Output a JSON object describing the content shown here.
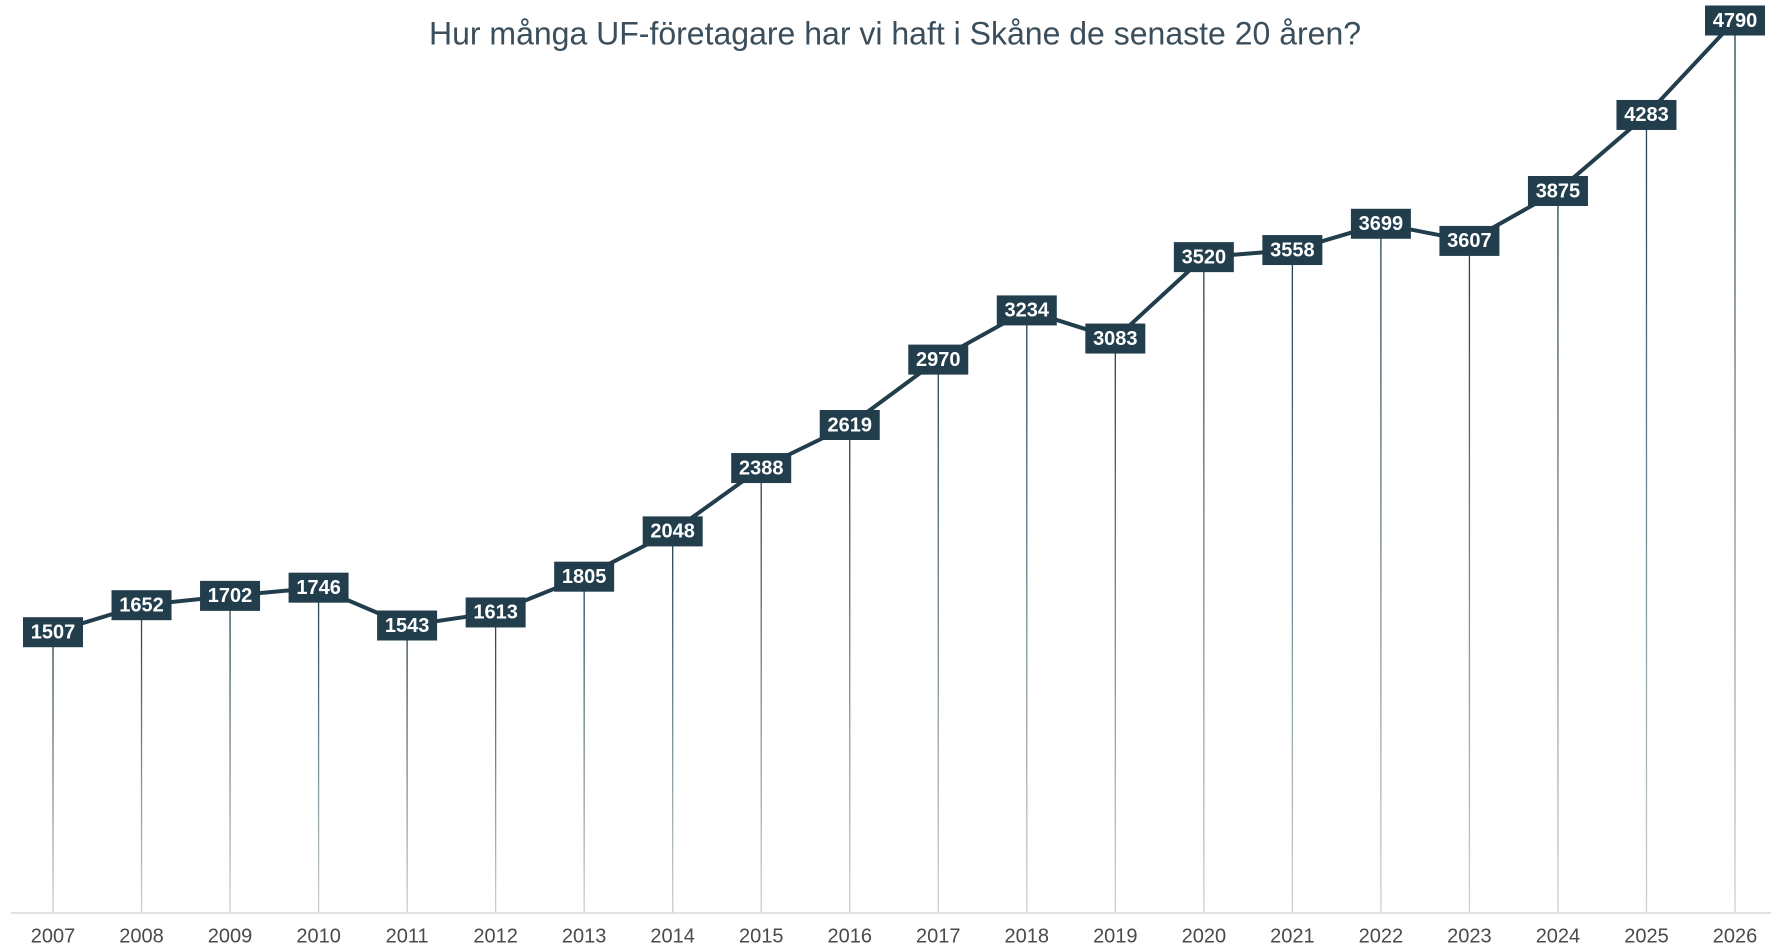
{
  "chart_data": {
    "type": "line",
    "subtitle": "Hur många UF-företagare har vi haft i Skåne de senaste 20 åren?",
    "categories": [
      "2007",
      "2008",
      "2009",
      "2010",
      "2011",
      "2012",
      "2013",
      "2014",
      "2015",
      "2016",
      "2017",
      "2018",
      "2019",
      "2020",
      "2021",
      "2022",
      "2023",
      "2024",
      "2025",
      "2026"
    ],
    "values": [
      1507,
      1652,
      1702,
      1746,
      1543,
      1613,
      1805,
      2048,
      2388,
      2619,
      2970,
      3234,
      3083,
      3520,
      3558,
      3699,
      3607,
      3875,
      4283,
      4790
    ],
    "color": "#223d4c",
    "ylim": [
      0,
      4900
    ]
  }
}
